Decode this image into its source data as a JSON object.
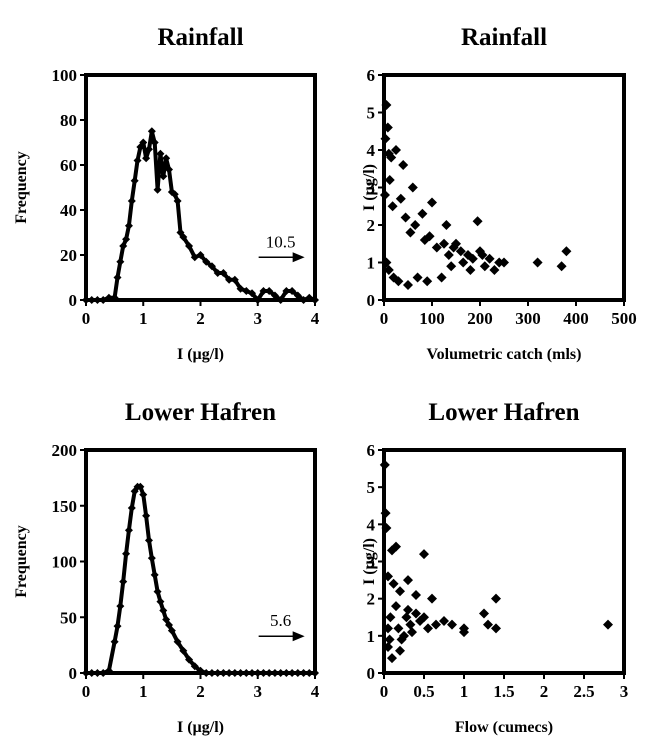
{
  "chart_data": [
    {
      "type": "line",
      "title": "Rainfall",
      "xlabel": "I (µg/l)",
      "ylabel": "Frequency",
      "xlim": [
        0,
        4
      ],
      "ylim": [
        0,
        100
      ],
      "xticks": [
        0,
        1,
        2,
        3,
        4
      ],
      "yticks": [
        0,
        20,
        40,
        60,
        80,
        100
      ],
      "annotation": {
        "text": "10.5",
        "arrow": true,
        "x": 3.4,
        "y": 19
      },
      "x": [
        0.0,
        0.1,
        0.2,
        0.3,
        0.4,
        0.5,
        0.55,
        0.6,
        0.65,
        0.7,
        0.75,
        0.8,
        0.85,
        0.9,
        0.95,
        1.0,
        1.05,
        1.1,
        1.15,
        1.2,
        1.25,
        1.3,
        1.35,
        1.4,
        1.45,
        1.5,
        1.55,
        1.6,
        1.65,
        1.7,
        1.8,
        1.9,
        2.0,
        2.1,
        2.2,
        2.3,
        2.4,
        2.5,
        2.6,
        2.7,
        2.8,
        2.9,
        3.0,
        3.1,
        3.2,
        3.3,
        3.4,
        3.5,
        3.6,
        3.7,
        3.8,
        3.9,
        4.0
      ],
      "values": [
        0,
        0,
        0,
        0,
        1,
        1,
        10,
        17,
        24,
        27,
        33,
        44,
        53,
        62,
        68,
        70,
        63,
        67,
        75,
        70,
        49,
        65,
        55,
        63,
        58,
        48,
        47,
        44,
        30,
        28,
        24,
        19,
        20,
        17,
        15,
        12,
        12,
        9,
        9,
        5,
        4,
        3,
        0,
        4,
        4,
        2,
        0,
        4,
        4,
        2,
        0,
        1,
        0
      ]
    },
    {
      "type": "scatter",
      "title": "Rainfall",
      "xlabel": "Volumetric catch (mls)",
      "ylabel": "I (µg/l)",
      "xlim": [
        0,
        500
      ],
      "ylim": [
        0,
        6
      ],
      "xticks": [
        0,
        100,
        200,
        300,
        400,
        500
      ],
      "yticks": [
        0,
        1,
        2,
        3,
        4,
        5,
        6
      ],
      "points": [
        [
          5,
          5.2
        ],
        [
          8,
          4.6
        ],
        [
          3,
          4.3
        ],
        [
          10,
          3.9
        ],
        [
          15,
          3.8
        ],
        [
          25,
          4.0
        ],
        [
          40,
          3.6
        ],
        [
          60,
          3.0
        ],
        [
          80,
          2.3
        ],
        [
          100,
          2.6
        ],
        [
          130,
          2.0
        ],
        [
          150,
          1.5
        ],
        [
          160,
          1.3
        ],
        [
          175,
          1.2
        ],
        [
          195,
          2.1
        ],
        [
          200,
          1.3
        ],
        [
          210,
          0.9
        ],
        [
          220,
          1.1
        ],
        [
          240,
          1.0
        ],
        [
          250,
          1.0
        ],
        [
          320,
          1.0
        ],
        [
          370,
          0.9
        ],
        [
          380,
          1.3
        ],
        [
          180,
          0.8
        ],
        [
          140,
          0.9
        ],
        [
          120,
          0.6
        ],
        [
          90,
          0.5
        ],
        [
          70,
          0.6
        ],
        [
          50,
          0.4
        ],
        [
          30,
          0.5
        ],
        [
          20,
          0.6
        ],
        [
          10,
          0.8
        ],
        [
          5,
          1.0
        ],
        [
          2,
          2.8
        ],
        [
          12,
          3.2
        ],
        [
          18,
          2.5
        ],
        [
          35,
          2.7
        ],
        [
          45,
          2.2
        ],
        [
          55,
          1.8
        ],
        [
          65,
          2.0
        ],
        [
          85,
          1.6
        ],
        [
          95,
          1.7
        ],
        [
          110,
          1.4
        ],
        [
          125,
          1.5
        ],
        [
          135,
          1.2
        ],
        [
          145,
          1.4
        ],
        [
          165,
          1.0
        ],
        [
          185,
          1.1
        ],
        [
          205,
          1.2
        ],
        [
          230,
          0.8
        ]
      ]
    },
    {
      "type": "line",
      "title": "Lower Hafren",
      "xlabel": "I (µg/l)",
      "ylabel": "Frequency",
      "xlim": [
        0,
        4
      ],
      "ylim": [
        0,
        200
      ],
      "xticks": [
        0,
        1,
        2,
        3,
        4
      ],
      "yticks": [
        0,
        50,
        100,
        150,
        200
      ],
      "annotation": {
        "text": "5.6",
        "arrow": true,
        "x": 3.4,
        "y": 33
      },
      "x": [
        0.0,
        0.1,
        0.2,
        0.3,
        0.4,
        0.5,
        0.55,
        0.6,
        0.65,
        0.7,
        0.75,
        0.8,
        0.85,
        0.9,
        0.95,
        1.0,
        1.05,
        1.1,
        1.15,
        1.2,
        1.25,
        1.3,
        1.35,
        1.4,
        1.45,
        1.5,
        1.6,
        1.7,
        1.8,
        1.9,
        2.0,
        2.1,
        2.2,
        2.3,
        2.4,
        2.5,
        2.6,
        2.7,
        2.8,
        2.9,
        3.0,
        3.1,
        3.2,
        3.3,
        3.4,
        3.5,
        3.6,
        3.7,
        3.8,
        3.9,
        4.0
      ],
      "values": [
        0,
        0,
        0,
        0,
        2,
        28,
        42,
        60,
        82,
        107,
        128,
        148,
        163,
        167,
        167,
        160,
        141,
        119,
        103,
        88,
        73,
        64,
        56,
        48,
        43,
        38,
        28,
        20,
        12,
        6,
        2,
        0,
        0,
        0,
        0,
        0,
        0,
        0,
        0,
        0,
        0,
        0,
        0,
        0,
        0,
        0,
        0,
        0,
        0,
        0,
        0
      ]
    },
    {
      "type": "scatter",
      "title": "Lower Hafren",
      "xlabel": "Flow (cumecs)",
      "ylabel": "I (µg/l)",
      "xlim": [
        0,
        3
      ],
      "ylim": [
        0,
        6
      ],
      "xticks": [
        0,
        0.5,
        1,
        1.5,
        2,
        2.5,
        3
      ],
      "yticks": [
        0,
        1,
        2,
        3,
        4,
        5,
        6
      ],
      "points": [
        [
          0.01,
          5.6
        ],
        [
          0.02,
          4.3
        ],
        [
          0.03,
          3.9
        ],
        [
          0.05,
          2.6
        ],
        [
          0.1,
          3.3
        ],
        [
          0.15,
          3.4
        ],
        [
          0.3,
          2.5
        ],
        [
          0.5,
          3.2
        ],
        [
          0.4,
          2.1
        ],
        [
          0.6,
          2.0
        ],
        [
          0.75,
          1.4
        ],
        [
          0.85,
          1.3
        ],
        [
          1.0,
          1.2
        ],
        [
          1.0,
          1.1
        ],
        [
          1.25,
          1.6
        ],
        [
          1.3,
          1.3
        ],
        [
          1.4,
          2.0
        ],
        [
          1.4,
          1.2
        ],
        [
          2.8,
          1.3
        ],
        [
          0.2,
          0.6
        ],
        [
          0.1,
          0.4
        ],
        [
          0.05,
          0.7
        ],
        [
          0.25,
          1.0
        ],
        [
          0.35,
          1.1
        ],
        [
          0.45,
          1.4
        ],
        [
          0.55,
          1.2
        ],
        [
          0.65,
          1.3
        ],
        [
          0.15,
          1.8
        ],
        [
          0.2,
          2.2
        ],
        [
          0.08,
          1.5
        ],
        [
          0.12,
          2.4
        ],
        [
          0.3,
          1.7
        ],
        [
          0.18,
          1.2
        ],
        [
          0.4,
          1.6
        ],
        [
          0.22,
          0.9
        ],
        [
          0.28,
          1.5
        ],
        [
          0.05,
          1.2
        ],
        [
          0.07,
          0.9
        ],
        [
          0.33,
          1.3
        ],
        [
          0.5,
          1.5
        ]
      ]
    }
  ]
}
